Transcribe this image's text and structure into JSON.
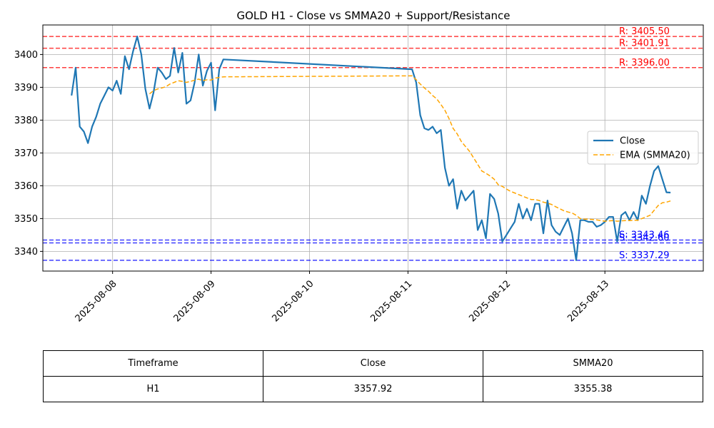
{
  "chart_data": {
    "type": "line",
    "title": "GOLD H1 - Close vs SMMA20 + Support/Resistance",
    "xlabel": "",
    "ylabel": "",
    "ylim": [
      3334,
      3409
    ],
    "yticks": [
      3340,
      3350,
      3360,
      3370,
      3380,
      3390,
      3400
    ],
    "xlim": [
      "2025-08-07 07:00",
      "2025-08-13 23:59"
    ],
    "xticks": [
      "2025-08-08",
      "2025-08-09",
      "2025-08-10",
      "2025-08-11",
      "2025-08-12",
      "2025-08-13"
    ],
    "grid": true,
    "legend_position": "center-right",
    "series": [
      {
        "name": "Close",
        "color": "#1f77b4",
        "style": "solid",
        "points": [
          [
            "2025-08-07 14:00",
            3387.5
          ],
          [
            "2025-08-07 15:00",
            3396.0
          ],
          [
            "2025-08-07 16:00",
            3378.0
          ],
          [
            "2025-08-07 17:00",
            3376.5
          ],
          [
            "2025-08-07 18:00",
            3373.0
          ],
          [
            "2025-08-07 19:00",
            3378.0
          ],
          [
            "2025-08-07 20:00",
            3381.0
          ],
          [
            "2025-08-07 21:00",
            3385.0
          ],
          [
            "2025-08-07 22:00",
            3387.5
          ],
          [
            "2025-08-07 23:00",
            3390.0
          ],
          [
            "2025-08-08 00:00",
            3389.0
          ],
          [
            "2025-08-08 01:00",
            3392.0
          ],
          [
            "2025-08-08 02:00",
            3388.0
          ],
          [
            "2025-08-08 03:00",
            3399.5
          ],
          [
            "2025-08-08 04:00",
            3395.5
          ],
          [
            "2025-08-08 05:00",
            3401.0
          ],
          [
            "2025-08-08 06:00",
            3405.5
          ],
          [
            "2025-08-08 07:00",
            3400.0
          ],
          [
            "2025-08-08 08:00",
            3389.5
          ],
          [
            "2025-08-08 09:00",
            3383.5
          ],
          [
            "2025-08-08 10:00",
            3388.5
          ],
          [
            "2025-08-08 11:00",
            3396.0
          ],
          [
            "2025-08-08 12:00",
            3394.5
          ],
          [
            "2025-08-08 13:00",
            3392.5
          ],
          [
            "2025-08-08 14:00",
            3393.5
          ],
          [
            "2025-08-08 15:00",
            3402.0
          ],
          [
            "2025-08-08 16:00",
            3394.5
          ],
          [
            "2025-08-08 17:00",
            3400.5
          ],
          [
            "2025-08-08 18:00",
            3385.0
          ],
          [
            "2025-08-08 19:00",
            3386.0
          ],
          [
            "2025-08-08 20:00",
            3391.5
          ],
          [
            "2025-08-08 21:00",
            3400.0
          ],
          [
            "2025-08-08 22:00",
            3390.5
          ],
          [
            "2025-08-08 23:00",
            3395.0
          ],
          [
            "2025-08-09 00:00",
            3397.5
          ],
          [
            "2025-08-09 01:00",
            3383.0
          ],
          [
            "2025-08-09 02:00",
            3395.5
          ],
          [
            "2025-08-09 03:00",
            3398.5
          ],
          [
            "2025-08-11 01:00",
            3395.5
          ],
          [
            "2025-08-11 02:00",
            3391.5
          ],
          [
            "2025-08-11 03:00",
            3381.5
          ],
          [
            "2025-08-11 04:00",
            3377.5
          ],
          [
            "2025-08-11 05:00",
            3377.0
          ],
          [
            "2025-08-11 06:00",
            3378.0
          ],
          [
            "2025-08-11 07:00",
            3376.0
          ],
          [
            "2025-08-11 08:00",
            3377.0
          ],
          [
            "2025-08-11 09:00",
            3365.5
          ],
          [
            "2025-08-11 10:00",
            3360.0
          ],
          [
            "2025-08-11 11:00",
            3362.0
          ],
          [
            "2025-08-11 12:00",
            3353.0
          ],
          [
            "2025-08-11 13:00",
            3358.5
          ],
          [
            "2025-08-11 14:00",
            3355.5
          ],
          [
            "2025-08-11 15:00",
            3357.0
          ],
          [
            "2025-08-11 16:00",
            3358.5
          ],
          [
            "2025-08-11 17:00",
            3346.5
          ],
          [
            "2025-08-11 18:00",
            3349.5
          ],
          [
            "2025-08-11 19:00",
            3344.0
          ],
          [
            "2025-08-11 20:00",
            3357.5
          ],
          [
            "2025-08-11 21:00",
            3356.0
          ],
          [
            "2025-08-11 22:00",
            3351.5
          ],
          [
            "2025-08-11 23:00",
            3343.0
          ],
          [
            "2025-08-12 00:00",
            3345.0
          ],
          [
            "2025-08-12 01:00",
            3347.0
          ],
          [
            "2025-08-12 02:00",
            3349.0
          ],
          [
            "2025-08-12 03:00",
            3354.5
          ],
          [
            "2025-08-12 04:00",
            3350.0
          ],
          [
            "2025-08-12 05:00",
            3353.0
          ],
          [
            "2025-08-12 06:00",
            3349.5
          ],
          [
            "2025-08-12 07:00",
            3354.5
          ],
          [
            "2025-08-12 08:00",
            3354.5
          ],
          [
            "2025-08-12 09:00",
            3345.5
          ],
          [
            "2025-08-12 10:00",
            3355.5
          ],
          [
            "2025-08-12 11:00",
            3348.0
          ],
          [
            "2025-08-12 12:00",
            3346.0
          ],
          [
            "2025-08-12 13:00",
            3345.0
          ],
          [
            "2025-08-12 14:00",
            3347.5
          ],
          [
            "2025-08-12 15:00",
            3350.0
          ],
          [
            "2025-08-12 16:00",
            3345.5
          ],
          [
            "2025-08-12 17:00",
            3337.3
          ],
          [
            "2025-08-12 18:00",
            3349.5
          ],
          [
            "2025-08-12 19:00",
            3349.5
          ],
          [
            "2025-08-12 20:00",
            3349.0
          ],
          [
            "2025-08-12 21:00",
            3349.0
          ],
          [
            "2025-08-12 22:00",
            3347.5
          ],
          [
            "2025-08-12 23:00",
            3348.0
          ],
          [
            "2025-08-13 00:00",
            3349.0
          ],
          [
            "2025-08-13 01:00",
            3350.5
          ],
          [
            "2025-08-13 02:00",
            3350.5
          ],
          [
            "2025-08-13 03:00",
            3343.0
          ],
          [
            "2025-08-13 04:00",
            3351.0
          ],
          [
            "2025-08-13 05:00",
            3352.0
          ],
          [
            "2025-08-13 06:00",
            3349.5
          ],
          [
            "2025-08-13 07:00",
            3352.0
          ],
          [
            "2025-08-13 08:00",
            3349.5
          ],
          [
            "2025-08-13 09:00",
            3357.0
          ],
          [
            "2025-08-13 10:00",
            3354.5
          ],
          [
            "2025-08-13 11:00",
            3360.0
          ],
          [
            "2025-08-13 12:00",
            3364.5
          ],
          [
            "2025-08-13 13:00",
            3366.0
          ],
          [
            "2025-08-13 14:00",
            3362.0
          ],
          [
            "2025-08-13 15:00",
            3358.0
          ],
          [
            "2025-08-13 16:00",
            3357.92
          ]
        ]
      },
      {
        "name": "EMA (SMMA20)",
        "color": "#ffa500",
        "style": "dashed",
        "points": [
          [
            "2025-08-08 09:00",
            3388.0
          ],
          [
            "2025-08-08 10:00",
            3389.0
          ],
          [
            "2025-08-08 11:00",
            3389.5
          ],
          [
            "2025-08-08 12:00",
            3389.8
          ],
          [
            "2025-08-08 13:00",
            3390.2
          ],
          [
            "2025-08-08 14:00",
            3391.0
          ],
          [
            "2025-08-08 15:00",
            3391.5
          ],
          [
            "2025-08-08 16:00",
            3392.0
          ],
          [
            "2025-08-08 17:00",
            3391.8
          ],
          [
            "2025-08-08 18:00",
            3391.5
          ],
          [
            "2025-08-08 19:00",
            3391.8
          ],
          [
            "2025-08-08 20:00",
            3392.2
          ],
          [
            "2025-08-08 21:00",
            3392.5
          ],
          [
            "2025-08-08 22:00",
            3392.0
          ],
          [
            "2025-08-08 23:00",
            3392.3
          ],
          [
            "2025-08-09 00:00",
            3392.2
          ],
          [
            "2025-08-09 01:00",
            3392.8
          ],
          [
            "2025-08-09 03:00",
            3393.2
          ],
          [
            "2025-08-11 01:00",
            3393.5
          ],
          [
            "2025-08-11 02:00",
            3392.3
          ],
          [
            "2025-08-11 03:00",
            3391.0
          ],
          [
            "2025-08-11 04:00",
            3389.8
          ],
          [
            "2025-08-11 05:00",
            3388.8
          ],
          [
            "2025-08-11 06:00",
            3387.5
          ],
          [
            "2025-08-11 07:00",
            3386.5
          ],
          [
            "2025-08-11 08:00",
            3384.8
          ],
          [
            "2025-08-11 09:00",
            3383.0
          ],
          [
            "2025-08-11 10:00",
            3380.5
          ],
          [
            "2025-08-11 11:00",
            3377.5
          ],
          [
            "2025-08-11 12:00",
            3375.8
          ],
          [
            "2025-08-11 13:00",
            3373.5
          ],
          [
            "2025-08-11 14:00",
            3372.0
          ],
          [
            "2025-08-11 15:00",
            3370.5
          ],
          [
            "2025-08-11 16:00",
            3368.5
          ],
          [
            "2025-08-11 17:00",
            3366.5
          ],
          [
            "2025-08-11 18:00",
            3364.5
          ],
          [
            "2025-08-11 19:00",
            3363.8
          ],
          [
            "2025-08-11 20:00",
            3363.0
          ],
          [
            "2025-08-11 21:00",
            3362.0
          ],
          [
            "2025-08-11 22:00",
            3360.3
          ],
          [
            "2025-08-11 23:00",
            3359.8
          ],
          [
            "2025-08-12 00:00",
            3359.0
          ],
          [
            "2025-08-12 01:00",
            3358.3
          ],
          [
            "2025-08-12 02:00",
            3357.8
          ],
          [
            "2025-08-12 03:00",
            3357.3
          ],
          [
            "2025-08-12 04:00",
            3356.8
          ],
          [
            "2025-08-12 05:00",
            3356.3
          ],
          [
            "2025-08-12 06:00",
            3355.8
          ],
          [
            "2025-08-12 07:00",
            3355.8
          ],
          [
            "2025-08-12 08:00",
            3355.5
          ],
          [
            "2025-08-12 09:00",
            3355.0
          ],
          [
            "2025-08-12 10:00",
            3354.7
          ],
          [
            "2025-08-12 11:00",
            3354.3
          ],
          [
            "2025-08-12 12:00",
            3353.6
          ],
          [
            "2025-08-12 13:00",
            3353.0
          ],
          [
            "2025-08-12 14:00",
            3352.4
          ],
          [
            "2025-08-12 15:00",
            3352.0
          ],
          [
            "2025-08-12 16:00",
            3351.7
          ],
          [
            "2025-08-12 17:00",
            3351.0
          ],
          [
            "2025-08-12 18:00",
            3350.0
          ],
          [
            "2025-08-12 19:00",
            3349.8
          ],
          [
            "2025-08-12 20:00",
            3349.8
          ],
          [
            "2025-08-12 21:00",
            3349.7
          ],
          [
            "2025-08-12 22:00",
            3349.6
          ],
          [
            "2025-08-12 23:00",
            3349.4
          ],
          [
            "2025-08-13 00:00",
            3349.2
          ],
          [
            "2025-08-13 01:00",
            3349.3
          ],
          [
            "2025-08-13 02:00",
            3349.4
          ],
          [
            "2025-08-13 03:00",
            3349.2
          ],
          [
            "2025-08-13 04:00",
            3349.3
          ],
          [
            "2025-08-13 05:00",
            3349.4
          ],
          [
            "2025-08-13 06:00",
            3349.4
          ],
          [
            "2025-08-13 07:00",
            3349.5
          ],
          [
            "2025-08-13 08:00",
            3349.5
          ],
          [
            "2025-08-13 09:00",
            3350.0
          ],
          [
            "2025-08-13 10:00",
            3350.5
          ],
          [
            "2025-08-13 11:00",
            3351.0
          ],
          [
            "2025-08-13 12:00",
            3352.5
          ],
          [
            "2025-08-13 13:00",
            3354.0
          ],
          [
            "2025-08-13 14:00",
            3354.8
          ],
          [
            "2025-08-13 15:00",
            3355.0
          ],
          [
            "2025-08-13 16:00",
            3355.38
          ]
        ]
      }
    ],
    "levels": [
      {
        "kind": "resistance",
        "value": 3405.5,
        "label": "R: 3405.50",
        "color": "#ff0000"
      },
      {
        "kind": "resistance",
        "value": 3401.91,
        "label": "R: 3401.91",
        "color": "#ff0000"
      },
      {
        "kind": "resistance",
        "value": 3396.0,
        "label": "R: 3396.00",
        "color": "#ff0000"
      },
      {
        "kind": "support",
        "value": 3343.46,
        "label": "S: 3343.46",
        "color": "#0000ff"
      },
      {
        "kind": "support",
        "value": 3342.6,
        "label": "S: 3342.60",
        "color": "#0000ff"
      },
      {
        "kind": "support",
        "value": 3337.29,
        "label": "S: 3337.29",
        "color": "#0000ff"
      }
    ]
  },
  "table": {
    "headers": [
      "Timeframe",
      "Close",
      "SMMA20"
    ],
    "rows": [
      [
        "H1",
        "3357.92",
        "3355.38"
      ]
    ]
  }
}
